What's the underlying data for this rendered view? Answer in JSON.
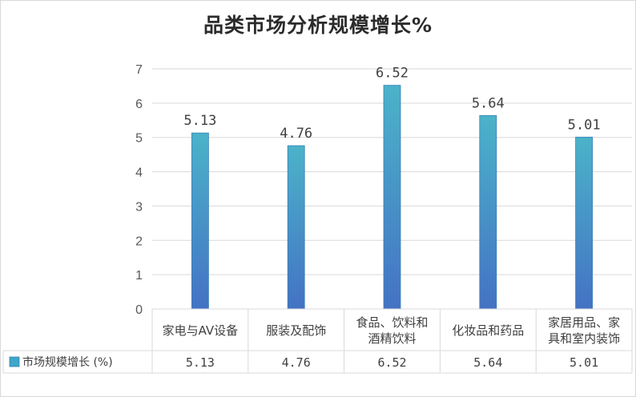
{
  "chart_data": {
    "type": "bar",
    "title": "品类市场分析规模增长%",
    "categories": [
      [
        "家电与AV设备"
      ],
      [
        "服装及配饰"
      ],
      [
        "食品、饮料和",
        "酒精饮料"
      ],
      [
        "化妆品和药品"
      ],
      [
        "家居用品、家",
        "具和室内装饰"
      ]
    ],
    "series": [
      {
        "name": "市场规模增长 (%)",
        "values": [
          5.13,
          4.76,
          6.52,
          5.64,
          5.01
        ]
      }
    ],
    "data_labels": [
      "5.13",
      "4.76",
      "6.52",
      "5.64",
      "5.01"
    ],
    "table_values": [
      "5.13",
      "4.76",
      "6.52",
      "5.64",
      "5.01"
    ],
    "yticks": [
      "0",
      "1",
      "2",
      "3",
      "4",
      "5",
      "6",
      "7"
    ],
    "ylim": [
      0,
      7
    ],
    "grid": true,
    "legend": "data-table-left",
    "colors": {
      "bar_top": "#4BB3C9",
      "bar_bottom": "#4472C4",
      "grid": "#d9d9d9",
      "legend_marker": "#3FA7C7"
    }
  }
}
